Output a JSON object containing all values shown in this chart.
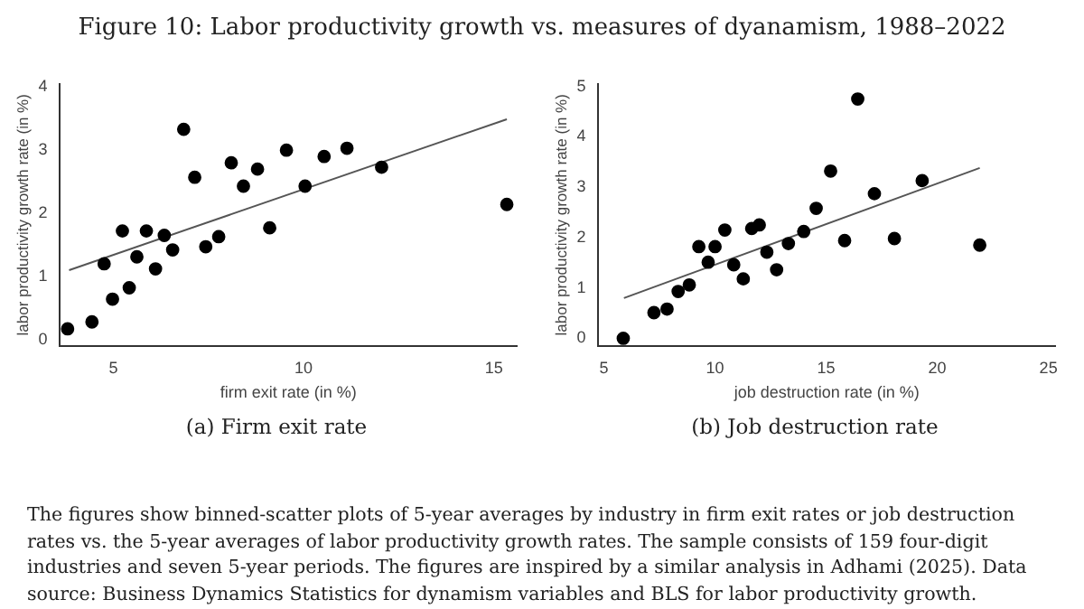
{
  "chart_data": [
    {
      "type": "scatter",
      "title": "(a) Firm exit rate",
      "xlabel": "firm exit rate (in %)",
      "ylabel": "labor productivity growth rate (in %)",
      "xlim": [
        3.6,
        15.6
      ],
      "xticks": [
        5,
        10,
        15
      ],
      "ylim": [
        -0.1,
        4.05
      ],
      "yticks": [
        0,
        1,
        2,
        3,
        4
      ],
      "grid": false,
      "legend": false,
      "marker": "circle",
      "annotations": [
        "Figure 10: Labor productivity growth vs. measures of dyanamism, 1988–2022"
      ],
      "series": [
        {
          "color": "#000000",
          "x": [
            3.8,
            4.44,
            4.76,
            4.98,
            5.24,
            5.42,
            5.62,
            5.87,
            6.11,
            6.34,
            6.56,
            6.85,
            7.14,
            7.43,
            7.77,
            8.1,
            8.42,
            8.79,
            9.11,
            9.55,
            10.04,
            10.54,
            11.14,
            12.05,
            15.34
          ],
          "values": [
            0.17,
            0.28,
            1.2,
            0.64,
            1.72,
            0.82,
            1.31,
            1.72,
            1.12,
            1.65,
            1.42,
            3.33,
            2.57,
            1.47,
            1.63,
            2.8,
            2.43,
            2.7,
            1.77,
            3.0,
            2.43,
            2.9,
            3.03,
            2.73,
            2.14
          ]
        },
        {
          "type": "line",
          "color": "#555555",
          "marker": "none",
          "x": [
            3.84,
            15.34
          ],
          "values": [
            1.1,
            3.49
          ]
        }
      ]
    },
    {
      "type": "scatter",
      "title": "(b) Job destruction rate",
      "xlabel": "job destruction rate (in %)",
      "ylabel": "labor productivity growth rate (in %)",
      "xlim": [
        4.75,
        25.3
      ],
      "xticks": [
        5,
        10,
        15,
        20,
        25
      ],
      "ylim": [
        -0.15,
        5.05
      ],
      "yticks": [
        0,
        1,
        2,
        3,
        4,
        5
      ],
      "grid": false,
      "legend": false,
      "marker": "circle",
      "annotations": [
        "The figures show binned-scatter plots of 5-year averages by industry in firm exit rates or job destruction rates vs. the 5-year averages of labor productivity growth rates. The sample consists of 159 four-digit industries and seven 5-year periods. The figures are inspired by a similar analysis in Adhami (2025). Data source: Business Dynamics Statistics for dynamism variables and BLS for labor productivity growth."
      ],
      "series": [
        {
          "color": "#000000",
          "x": [
            5.87,
            7.25,
            7.84,
            8.34,
            8.84,
            9.27,
            9.69,
            10.0,
            10.44,
            10.84,
            11.27,
            11.65,
            11.99,
            12.33,
            12.77,
            13.3,
            13.99,
            14.55,
            15.2,
            15.83,
            16.42,
            17.17,
            18.07,
            19.32,
            21.91
          ],
          "values": [
            0.0,
            0.51,
            0.58,
            0.93,
            1.06,
            1.82,
            1.51,
            1.82,
            2.15,
            1.46,
            1.18,
            2.18,
            2.25,
            1.71,
            1.36,
            1.88,
            2.12,
            2.58,
            3.32,
            1.94,
            4.75,
            2.87,
            1.98,
            3.13,
            1.85
          ]
        },
        {
          "type": "line",
          "color": "#555555",
          "marker": "none",
          "x": [
            5.9,
            21.91
          ],
          "values": [
            0.8,
            3.38
          ]
        }
      ]
    }
  ]
}
